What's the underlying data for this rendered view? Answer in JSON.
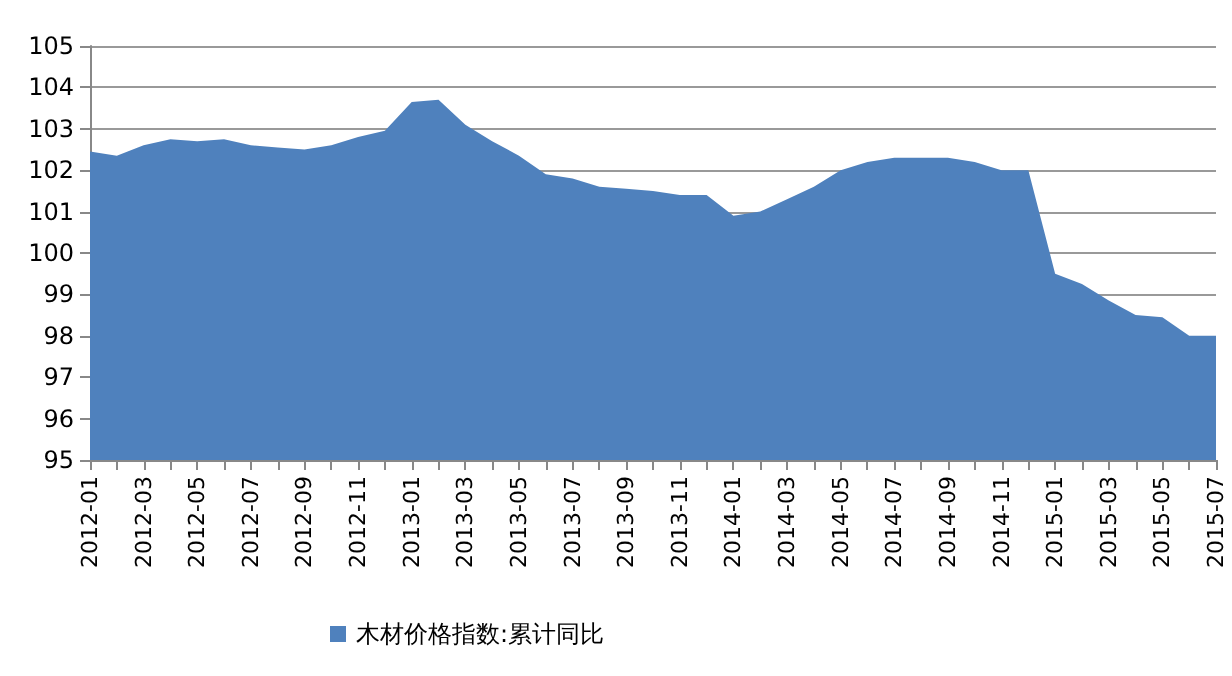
{
  "chart_data": {
    "type": "area",
    "categories": [
      "2012-01",
      null,
      "2012-03",
      null,
      "2012-05",
      null,
      "2012-07",
      null,
      "2012-09",
      null,
      "2012-11",
      null,
      "2013-01",
      null,
      "2013-03",
      null,
      "2013-05",
      null,
      "2013-07",
      null,
      "2013-09",
      null,
      "2013-11",
      null,
      "2014-01",
      null,
      "2014-03",
      null,
      "2014-05",
      null,
      "2014-07",
      null,
      "2014-09",
      null,
      "2014-11",
      null,
      "2015-01",
      null,
      "2015-03",
      null,
      "2015-05",
      null,
      "2015-07"
    ],
    "series": [
      {
        "name": "木材价格指数:累计同比",
        "color": "#4f81bd",
        "values": [
          102.45,
          102.35,
          102.6,
          102.75,
          102.7,
          102.75,
          102.6,
          102.55,
          102.5,
          102.6,
          102.8,
          102.95,
          103.65,
          103.7,
          103.1,
          102.7,
          102.35,
          101.9,
          101.8,
          101.6,
          101.55,
          101.5,
          101.4,
          101.4,
          100.9,
          101.0,
          101.3,
          101.6,
          102.0,
          102.2,
          102.3,
          102.3,
          102.3,
          102.2,
          102.0,
          102.0,
          99.5,
          99.25,
          98.85,
          98.5,
          98.45,
          98.0,
          98.0
        ]
      }
    ],
    "ylim": [
      95,
      105
    ],
    "yticks": [
      95,
      96,
      97,
      98,
      99,
      100,
      101,
      102,
      103,
      104,
      105
    ],
    "grid": "y",
    "legend": "bottom"
  }
}
